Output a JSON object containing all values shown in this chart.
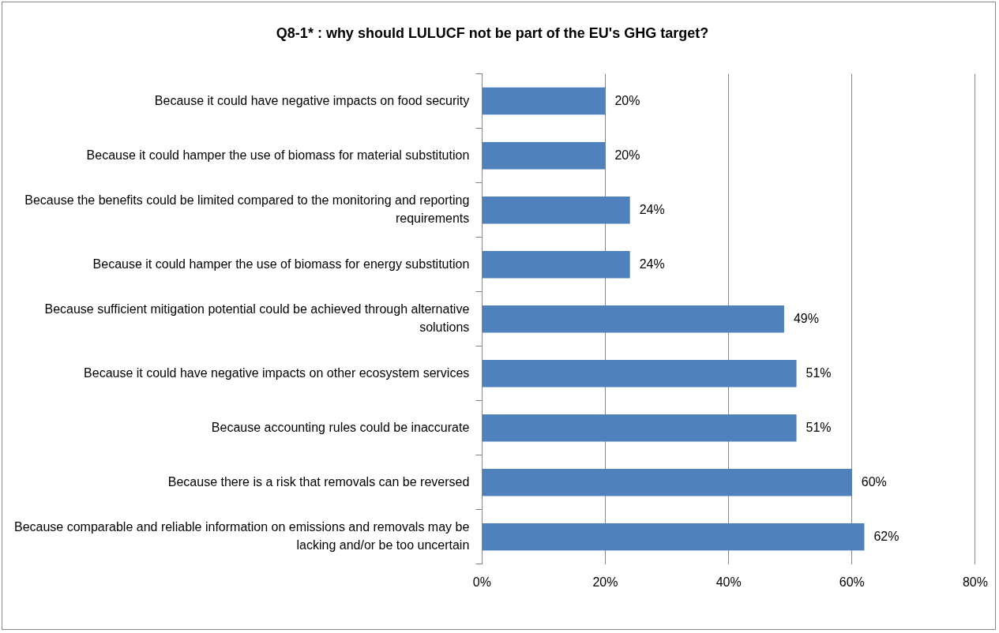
{
  "chart_data": {
    "type": "bar",
    "orientation": "horizontal",
    "title": "Q8-1* : why should LULUCF not be part of the EU's GHG target?",
    "categories": [
      "Because it could have negative impacts on food security",
      "Because it could hamper the use of biomass for material substitution",
      "Because the benefits could be limited compared to the monitoring and reporting requirements",
      "Because it could hamper the use of biomass for energy substitution",
      "Because sufficient mitigation potential could be achieved through alternative solutions",
      "Because it could have negative impacts on other ecosystem services",
      "Because accounting rules could be inaccurate",
      "Because there is a risk that removals can be reversed",
      "Because comparable and reliable information on emissions and removals may be lacking and/or be too uncertain"
    ],
    "values": [
      20,
      20,
      24,
      24,
      49,
      51,
      51,
      60,
      62
    ],
    "value_labels": [
      "20%",
      "20%",
      "24%",
      "24%",
      "49%",
      "51%",
      "51%",
      "60%",
      "62%"
    ],
    "color": "#4f81bd",
    "xlim": [
      0,
      80
    ],
    "xticks": [
      {
        "value": 0,
        "label": "0%"
      },
      {
        "value": 20,
        "label": "20%"
      },
      {
        "value": 40,
        "label": "40%"
      },
      {
        "value": 60,
        "label": "60%"
      },
      {
        "value": 80,
        "label": "80%"
      }
    ],
    "grid": "x",
    "legend": false
  }
}
